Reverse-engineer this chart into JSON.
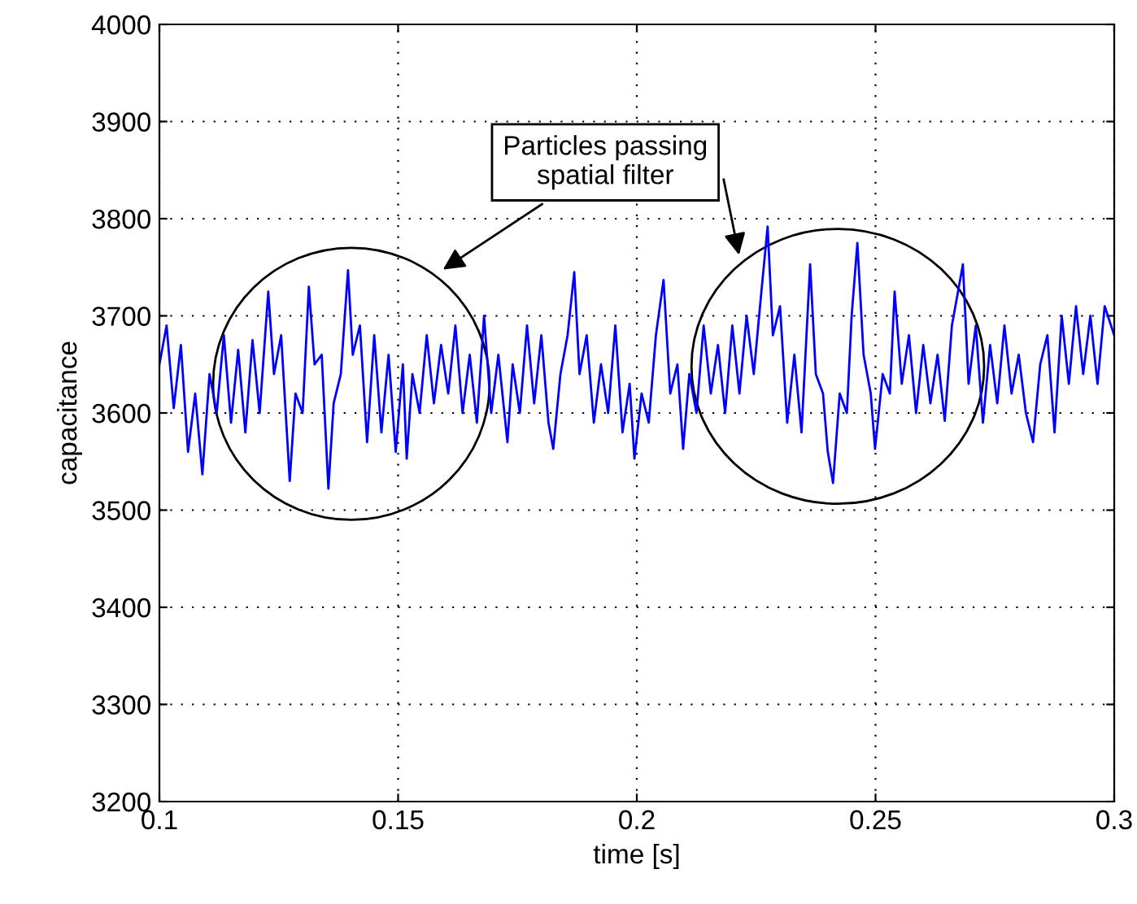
{
  "chart_data": {
    "type": "line",
    "xlabel": "time [s]",
    "ylabel": "capacitance",
    "annotations": [
      "Particles passing\nspatial filter"
    ],
    "xlim": [
      0.1,
      0.3
    ],
    "xticks": [
      0.1,
      0.15,
      0.2,
      0.25,
      0.3
    ],
    "ylim": [
      3200,
      4000
    ],
    "yticks": [
      3200,
      3300,
      3400,
      3500,
      3600,
      3700,
      3800,
      3900,
      4000
    ],
    "grid": true,
    "legend": false,
    "series": [
      {
        "color": "#0000ff",
        "x": [
          0.1,
          0.1015,
          0.103,
          0.1045,
          0.106,
          0.1075,
          0.109,
          0.1105,
          0.112,
          0.1135,
          0.115,
          0.1165,
          0.118,
          0.1195,
          0.121,
          0.1228,
          0.124,
          0.1255,
          0.1273,
          0.1285,
          0.13,
          0.1313,
          0.1325,
          0.134,
          0.1354,
          0.1365,
          0.138,
          0.1395,
          0.1405,
          0.142,
          0.1435,
          0.145,
          0.1465,
          0.148,
          0.1495,
          0.151,
          0.1518,
          0.153,
          0.1545,
          0.156,
          0.1575,
          0.159,
          0.1605,
          0.162,
          0.1635,
          0.165,
          0.1665,
          0.168,
          0.1695,
          0.171,
          0.1729,
          0.174,
          0.1755,
          0.177,
          0.1785,
          0.18,
          0.1815,
          0.1825,
          0.184,
          0.1855,
          0.1869,
          0.188,
          0.1895,
          0.191,
          0.1925,
          0.194,
          0.1955,
          0.197,
          0.1985,
          0.1995,
          0.201,
          0.2025,
          0.204,
          0.2056,
          0.207,
          0.2085,
          0.2097,
          0.211,
          0.2125,
          0.214,
          0.2155,
          0.217,
          0.2185,
          0.22,
          0.2215,
          0.223,
          0.2245,
          0.226,
          0.2274,
          0.2285,
          0.23,
          0.2315,
          0.233,
          0.2345,
          0.2363,
          0.2375,
          0.239,
          0.24,
          0.2411,
          0.2425,
          0.244,
          0.245,
          0.2462,
          0.2475,
          0.249,
          0.2499,
          0.2515,
          0.253,
          0.254,
          0.2555,
          0.257,
          0.2585,
          0.26,
          0.2615,
          0.263,
          0.2645,
          0.266,
          0.2683,
          0.2695,
          0.271,
          0.2725,
          0.274,
          0.2755,
          0.277,
          0.2785,
          0.28,
          0.2815,
          0.283,
          0.2845,
          0.286,
          0.2875,
          0.289,
          0.2905,
          0.292,
          0.2935,
          0.295,
          0.2965,
          0.298,
          0.3
        ],
        "values": [
          3650,
          3690,
          3605,
          3670,
          3560,
          3620,
          3537,
          3640,
          3600,
          3680,
          3590,
          3665,
          3580,
          3675,
          3600,
          3725,
          3640,
          3680,
          3530,
          3620,
          3600,
          3730,
          3650,
          3660,
          3522,
          3610,
          3640,
          3747,
          3660,
          3690,
          3570,
          3680,
          3580,
          3660,
          3560,
          3650,
          3553,
          3640,
          3600,
          3680,
          3610,
          3670,
          3620,
          3690,
          3600,
          3660,
          3590,
          3700,
          3600,
          3660,
          3570,
          3650,
          3600,
          3690,
          3610,
          3680,
          3590,
          3563,
          3640,
          3680,
          3745,
          3640,
          3680,
          3590,
          3650,
          3600,
          3690,
          3580,
          3630,
          3553,
          3620,
          3590,
          3680,
          3737,
          3620,
          3650,
          3563,
          3640,
          3600,
          3690,
          3620,
          3670,
          3600,
          3690,
          3620,
          3700,
          3640,
          3720,
          3792,
          3680,
          3710,
          3590,
          3660,
          3580,
          3753,
          3640,
          3620,
          3560,
          3528,
          3620,
          3600,
          3700,
          3775,
          3660,
          3620,
          3563,
          3640,
          3620,
          3725,
          3630,
          3680,
          3600,
          3670,
          3610,
          3660,
          3592,
          3690,
          3753,
          3630,
          3690,
          3590,
          3670,
          3610,
          3690,
          3620,
          3660,
          3600,
          3570,
          3650,
          3680,
          3580,
          3700,
          3630,
          3710,
          3640,
          3700,
          3630,
          3710,
          3680
        ]
      }
    ]
  }
}
